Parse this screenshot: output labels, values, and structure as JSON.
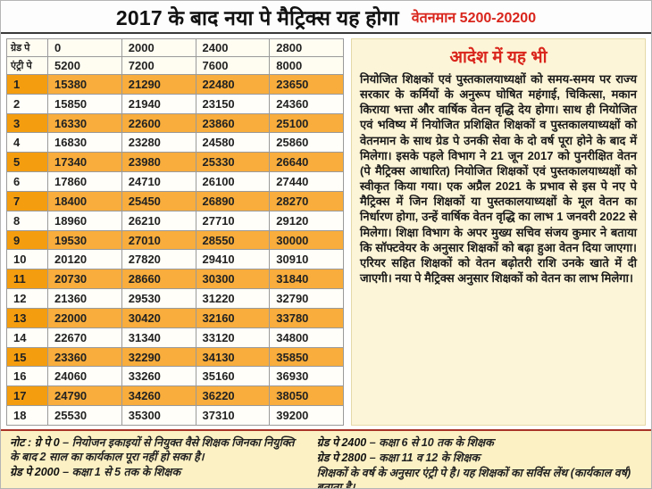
{
  "header": {
    "title": "2017 के बाद नया पे मैट्रिक्स यह होगा",
    "pay_scale": "वेतनमान 5200-20200"
  },
  "table": {
    "grade_pay_row": {
      "label": "ग्रेड पे",
      "values": [
        "0",
        "2000",
        "2400",
        "2800"
      ]
    },
    "entry_pay_row": {
      "label": "एंट्री पे",
      "values": [
        "5200",
        "7200",
        "7600",
        "8000"
      ]
    },
    "rows": [
      {
        "sn": "1",
        "values": [
          "15380",
          "21290",
          "22480",
          "23650"
        ]
      },
      {
        "sn": "2",
        "values": [
          "15850",
          "21940",
          "23150",
          "24360"
        ]
      },
      {
        "sn": "3",
        "values": [
          "16330",
          "22600",
          "23860",
          "25100"
        ]
      },
      {
        "sn": "4",
        "values": [
          "16830",
          "23280",
          "24580",
          "25860"
        ]
      },
      {
        "sn": "5",
        "values": [
          "17340",
          "23980",
          "25330",
          "26640"
        ]
      },
      {
        "sn": "6",
        "values": [
          "17860",
          "24710",
          "26100",
          "27440"
        ]
      },
      {
        "sn": "7",
        "values": [
          "18400",
          "25450",
          "26890",
          "28270"
        ]
      },
      {
        "sn": "8",
        "values": [
          "18960",
          "26210",
          "27710",
          "29120"
        ]
      },
      {
        "sn": "9",
        "values": [
          "19530",
          "27010",
          "28550",
          "30000"
        ]
      },
      {
        "sn": "10",
        "values": [
          "20120",
          "27820",
          "29410",
          "30910"
        ]
      },
      {
        "sn": "11",
        "values": [
          "20730",
          "28660",
          "30300",
          "31840"
        ]
      },
      {
        "sn": "12",
        "values": [
          "21360",
          "29530",
          "31220",
          "32790"
        ]
      },
      {
        "sn": "13",
        "values": [
          "22000",
          "30420",
          "32160",
          "33780"
        ]
      },
      {
        "sn": "14",
        "values": [
          "22670",
          "31340",
          "33120",
          "34800"
        ]
      },
      {
        "sn": "15",
        "values": [
          "23360",
          "32290",
          "34130",
          "35850"
        ]
      },
      {
        "sn": "16",
        "values": [
          "24060",
          "33260",
          "35160",
          "36930"
        ]
      },
      {
        "sn": "17",
        "values": [
          "24790",
          "34260",
          "36220",
          "38050"
        ]
      },
      {
        "sn": "18",
        "values": [
          "25530",
          "35300",
          "37310",
          "39200"
        ]
      }
    ]
  },
  "order_panel": {
    "heading": "आदेश में यह भी",
    "body": "नियोजित शिक्षकों एवं पुस्तकालयाध्यक्षों को समय-समय पर राज्य सरकार के कर्मियों के अनुरूप घोषित महंगाई, चिकित्सा, मकान किराया भत्ता और वार्षिक वेतन वृद्धि देय होगा। साथ ही नियोजित एवं भविष्य में नियोजित प्रशिक्षित शिक्षकों व पुस्तकालयाध्यक्षों को वेतनमान के साथ ग्रेड पे उनकी सेवा के दो वर्ष पूरा होने के बाद में मिलेगा। इसके पहले विभाग ने 21 जून 2017 को पुनरीक्षित वेतन (पे मैट्रिक्स आधारित) नियोजित शिक्षकों एवं पुस्तकालयाध्यक्षों को स्वीकृत किया गया। एक अप्रैल 2021 के प्रभाव से इस पे नए पे मैट्रिक्स में जिन शिक्षकों या पुस्तकालयाध्यक्षों के मूल वेतन का निर्धारण होगा, उन्हें वार्षिक वेतन वृद्धि का लाभ 1 जनवरी 2022 से मिलेगा। शिक्षा विभाग के अपर मुख्य सचिव संजय कुमार ने बताया कि सॉफ्टवेयर के अनुसार शिक्षकों को बढ़ा हुआ वेतन दिया जाएगा। एरियर सहित शिक्षकों को वेतन बढ़ोतरी राशि उनके खाते में दी जाएगी। नया पे मैट्रिक्स अनुसार शिक्षकों को वेतन का लाभ मिलेगा।"
  },
  "notes": {
    "note_prefix": "नोट :",
    "left": [
      {
        "label": "ग्रे पे 0",
        "text": "– नियोजन इकाइयों से नियुक्त वैसे शिक्षक जिनका नियुक्ति के बाद 2 साल का कार्यकाल पूरा नहीं हो सका है।"
      },
      {
        "label": "ग्रेड पे 2000",
        "text": "– कक्षा 1 से 5 तक के शिक्षक"
      }
    ],
    "right": [
      {
        "label": "ग्रेड पे 2400",
        "text": "– कक्षा 6 से 10 तक के शिक्षक"
      },
      {
        "label": "ग्रेड पे 2800",
        "text": "– कक्षा 11 व 12 के शिक्षक"
      },
      {
        "label": "",
        "text": "शिक्षकों के वर्ष के अनुसार एंट्री पे है। यह शिक्षकों का सर्विस लेंथ (कार्यकाल वर्ष) बताता है।"
      }
    ]
  },
  "colors": {
    "accent_red": "#d9251c",
    "row_highlight": "#f8ad3c",
    "serial_highlight": "#f49d0f",
    "order_panel_bg": "#fdf5d8",
    "notes_bg": "#fcf1c4"
  }
}
